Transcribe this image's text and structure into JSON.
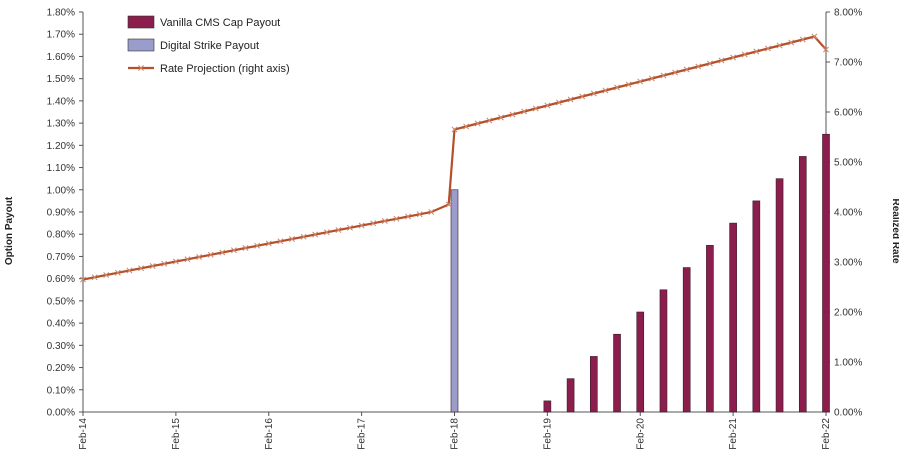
{
  "chart_data": {
    "type": "bar",
    "title": "",
    "ylabel": "Option Payout",
    "y2label": "Realized Rate",
    "xlabel": "",
    "ylim": [
      0,
      0.018
    ],
    "y2lim": [
      0,
      0.08
    ],
    "grid": false,
    "legend_position": "top-left",
    "y_ticks": [
      "0.00%",
      "0.10%",
      "0.20%",
      "0.30%",
      "0.40%",
      "0.50%",
      "0.60%",
      "0.70%",
      "0.80%",
      "0.90%",
      "1.00%",
      "1.10%",
      "1.20%",
      "1.30%",
      "1.40%",
      "1.50%",
      "1.60%",
      "1.70%",
      "1.80%"
    ],
    "y2_ticks": [
      "0.00%",
      "1.00%",
      "2.00%",
      "3.00%",
      "4.00%",
      "5.00%",
      "6.00%",
      "7.00%",
      "8.00%"
    ],
    "x_ticks": [
      "Feb-14",
      "Feb-15",
      "Feb-16",
      "Feb-17",
      "Feb-18",
      "Feb-19",
      "Feb-20",
      "Feb-21",
      "Feb-22"
    ],
    "series": [
      {
        "name": "Vanilla CMS Cap Payout",
        "type": "bar",
        "axis": "left",
        "color": "#8B1E4C",
        "points": [
          {
            "x": 20.0,
            "y": 0.0005
          },
          {
            "x": 21.0,
            "y": 0.0015
          },
          {
            "x": 22.0,
            "y": 0.0025
          },
          {
            "x": 23.0,
            "y": 0.0035
          },
          {
            "x": 24.0,
            "y": 0.0045
          },
          {
            "x": 25.0,
            "y": 0.0055
          },
          {
            "x": 26.0,
            "y": 0.0065
          },
          {
            "x": 27.0,
            "y": 0.0075
          },
          {
            "x": 28.0,
            "y": 0.0085
          },
          {
            "x": 29.0,
            "y": 0.0095
          },
          {
            "x": 30.0,
            "y": 0.0105
          },
          {
            "x": 31.0,
            "y": 0.0115
          },
          {
            "x": 32.0,
            "y": 0.0125
          }
        ]
      },
      {
        "name": "Digital Strike Payout",
        "type": "bar",
        "axis": "left",
        "color": "#9A9CCC",
        "points": [
          {
            "x": 16.0,
            "y": 0.01
          }
        ]
      },
      {
        "name": "Rate Projection (right axis)",
        "type": "line",
        "axis": "right",
        "color": "#B5502A",
        "marker": "x",
        "points": [
          {
            "x": 0,
            "y": 0.0265
          },
          {
            "x": 0.5,
            "y": 0.02695
          },
          {
            "x": 1,
            "y": 0.0274
          },
          {
            "x": 1.5,
            "y": 0.02785
          },
          {
            "x": 2,
            "y": 0.0283
          },
          {
            "x": 2.5,
            "y": 0.02875
          },
          {
            "x": 3,
            "y": 0.0292
          },
          {
            "x": 3.5,
            "y": 0.02965
          },
          {
            "x": 4,
            "y": 0.0301
          },
          {
            "x": 4.5,
            "y": 0.03055
          },
          {
            "x": 5,
            "y": 0.031
          },
          {
            "x": 5.5,
            "y": 0.03145
          },
          {
            "x": 6,
            "y": 0.0319
          },
          {
            "x": 6.5,
            "y": 0.03235
          },
          {
            "x": 7,
            "y": 0.0328
          },
          {
            "x": 7.5,
            "y": 0.03325
          },
          {
            "x": 8,
            "y": 0.0337
          },
          {
            "x": 8.5,
            "y": 0.03415
          },
          {
            "x": 9,
            "y": 0.0346
          },
          {
            "x": 9.5,
            "y": 0.03505
          },
          {
            "x": 10,
            "y": 0.0355
          },
          {
            "x": 10.5,
            "y": 0.03595
          },
          {
            "x": 11,
            "y": 0.0364
          },
          {
            "x": 11.5,
            "y": 0.03685
          },
          {
            "x": 12,
            "y": 0.0373
          },
          {
            "x": 12.5,
            "y": 0.03775
          },
          {
            "x": 13,
            "y": 0.0382
          },
          {
            "x": 13.5,
            "y": 0.03865
          },
          {
            "x": 14,
            "y": 0.0391
          },
          {
            "x": 14.5,
            "y": 0.03955
          },
          {
            "x": 15,
            "y": 0.04
          },
          {
            "x": 15.75,
            "y": 0.0415
          },
          {
            "x": 16.0,
            "y": 0.0565
          },
          {
            "x": 16.5,
            "y": 0.0571
          },
          {
            "x": 17,
            "y": 0.0577
          },
          {
            "x": 17.5,
            "y": 0.0583
          },
          {
            "x": 18,
            "y": 0.0589
          },
          {
            "x": 18.5,
            "y": 0.0595
          },
          {
            "x": 19,
            "y": 0.0601
          },
          {
            "x": 19.5,
            "y": 0.0607
          },
          {
            "x": 20,
            "y": 0.0613
          },
          {
            "x": 20.5,
            "y": 0.0619
          },
          {
            "x": 21,
            "y": 0.0625
          },
          {
            "x": 21.5,
            "y": 0.0631
          },
          {
            "x": 22,
            "y": 0.0637
          },
          {
            "x": 22.5,
            "y": 0.0643
          },
          {
            "x": 23,
            "y": 0.0649
          },
          {
            "x": 23.5,
            "y": 0.0655
          },
          {
            "x": 24,
            "y": 0.0661
          },
          {
            "x": 24.5,
            "y": 0.0667
          },
          {
            "x": 25,
            "y": 0.0673
          },
          {
            "x": 25.5,
            "y": 0.0679
          },
          {
            "x": 26,
            "y": 0.0685
          },
          {
            "x": 26.5,
            "y": 0.0691
          },
          {
            "x": 27,
            "y": 0.0697
          },
          {
            "x": 27.5,
            "y": 0.0703
          },
          {
            "x": 28,
            "y": 0.0709
          },
          {
            "x": 28.5,
            "y": 0.0715
          },
          {
            "x": 29,
            "y": 0.0721
          },
          {
            "x": 29.5,
            "y": 0.0727
          },
          {
            "x": 30,
            "y": 0.0733
          },
          {
            "x": 30.5,
            "y": 0.0739
          },
          {
            "x": 31,
            "y": 0.0745
          },
          {
            "x": 31.5,
            "y": 0.0751
          },
          {
            "x": 32,
            "y": 0.0725
          }
        ]
      }
    ]
  }
}
